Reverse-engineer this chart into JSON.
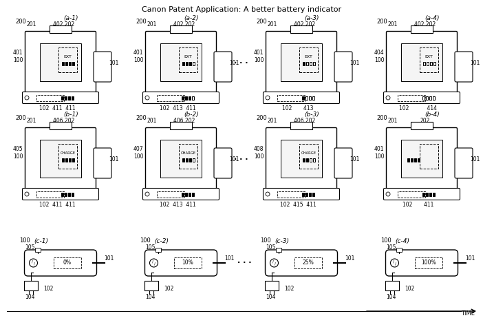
{
  "title": "Canon Patent Application: A better battery indicator",
  "background": "#ffffff",
  "rows": [
    {
      "label": "a",
      "cols": [
        "(a-1)",
        "(a-2)",
        "(a-3)",
        "(a-4)"
      ]
    },
    {
      "label": "b",
      "cols": [
        "(b-1)",
        "(b-2)",
        "(b-3)",
        "(b-4)"
      ]
    },
    {
      "label": "c",
      "cols": [
        "(c-1)",
        "(c-2)",
        "(c-3)",
        "(c-4)"
      ]
    }
  ],
  "col_labels_a": [
    "402 202",
    "402 202",
    "402 202",
    "402 202"
  ],
  "col_labels_b": [
    "406 202",
    "406 202",
    "406 202",
    "202"
  ],
  "battery_pct": [
    "0%",
    "10%",
    "25%",
    "100%"
  ],
  "ext_bars_a": [
    4,
    3,
    1,
    0
  ],
  "charge_bars_b": [
    4,
    3,
    2,
    4
  ],
  "left_labels_a": [
    "401\n100",
    "401\n100",
    "401\n100",
    "404\n100"
  ],
  "left_labels_b": [
    "405\n100",
    "407\n100",
    "408\n100",
    "401\n100"
  ],
  "bottom_labels_a": [
    "102  411  411",
    "102  413  411",
    "102       413",
    "102           414"
  ],
  "bottom_labels_b": [
    "102  411  411",
    "102  413  411",
    "102  415  411",
    "102       411"
  ],
  "bottom_labels_c": [
    "104  102",
    "104  102",
    "104  102",
    "104  102"
  ],
  "dots_cols": [
    1,
    1
  ],
  "num_200": "200",
  "num_201": "201",
  "num_101": "101",
  "num_100": "100",
  "num_105": "105"
}
